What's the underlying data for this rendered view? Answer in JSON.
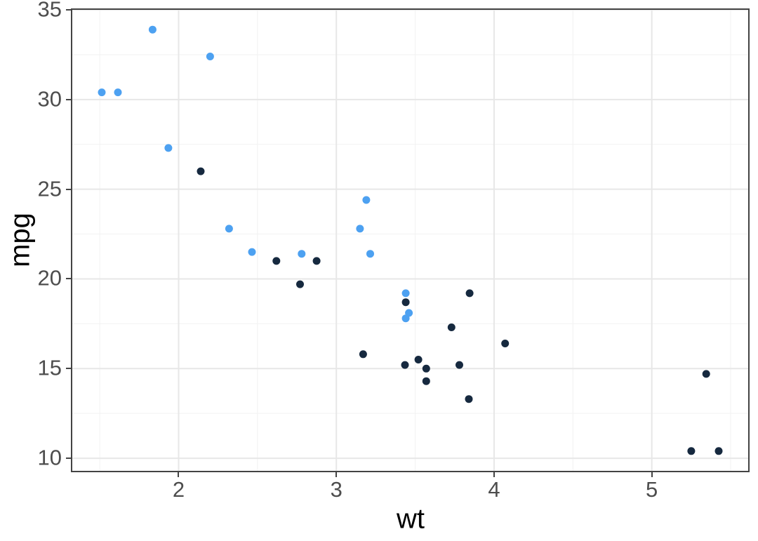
{
  "chart_data": {
    "type": "scatter",
    "title": "",
    "xlabel": "wt",
    "ylabel": "mpg",
    "xlim": [
      1.317,
      5.62
    ],
    "ylim": [
      9.22,
      35.08
    ],
    "x_ticks": [
      2,
      3,
      4,
      5
    ],
    "x_tick_labels": [
      "2",
      "3",
      "4",
      "5"
    ],
    "x_minor": [
      1.5,
      2.5,
      3.5,
      4.5,
      5.5
    ],
    "y_ticks": [
      10,
      15,
      20,
      25,
      30,
      35
    ],
    "y_tick_labels": [
      "10",
      "15",
      "20",
      "25",
      "30",
      "35"
    ],
    "y_minor": [
      12.5,
      17.5,
      22.5,
      27.5,
      32.5
    ],
    "grid": true,
    "legend_position": "none",
    "series": [
      {
        "name": "dark-navy-group",
        "color": "#16293F",
        "points": [
          [
            2.62,
            21.0
          ],
          [
            2.875,
            21.0
          ],
          [
            3.44,
            18.7
          ],
          [
            3.57,
            14.3
          ],
          [
            4.07,
            16.4
          ],
          [
            3.73,
            17.3
          ],
          [
            3.78,
            15.2
          ],
          [
            5.25,
            10.4
          ],
          [
            5.424,
            10.4
          ],
          [
            5.345,
            14.7
          ],
          [
            3.52,
            15.5
          ],
          [
            3.435,
            15.2
          ],
          [
            3.84,
            13.3
          ],
          [
            3.845,
            19.2
          ],
          [
            2.14,
            26.0
          ],
          [
            3.17,
            15.8
          ],
          [
            2.77,
            19.7
          ],
          [
            3.57,
            15.0
          ]
        ]
      },
      {
        "name": "light-blue-group",
        "color": "#4DA1F1",
        "points": [
          [
            2.32,
            22.8
          ],
          [
            3.215,
            21.4
          ],
          [
            3.46,
            18.1
          ],
          [
            3.19,
            24.4
          ],
          [
            3.15,
            22.8
          ],
          [
            3.44,
            19.2
          ],
          [
            3.44,
            17.8
          ],
          [
            2.2,
            32.4
          ],
          [
            1.615,
            30.4
          ],
          [
            1.835,
            33.9
          ],
          [
            2.465,
            21.5
          ],
          [
            1.935,
            27.3
          ],
          [
            1.513,
            30.4
          ],
          [
            2.78,
            21.4
          ]
        ]
      }
    ]
  },
  "style": {
    "background": "#FFFFFF",
    "panel_background": "#FFFFFF",
    "panel_border_color": "#434343",
    "grid_major_color": "#E7E7E7",
    "grid_minor_color": "#F2F2F2",
    "tick_mark_color": "#434343",
    "tick_label_color": "#4D4D4D",
    "axis_title_color": "#000000",
    "point_radius": 5.5
  }
}
